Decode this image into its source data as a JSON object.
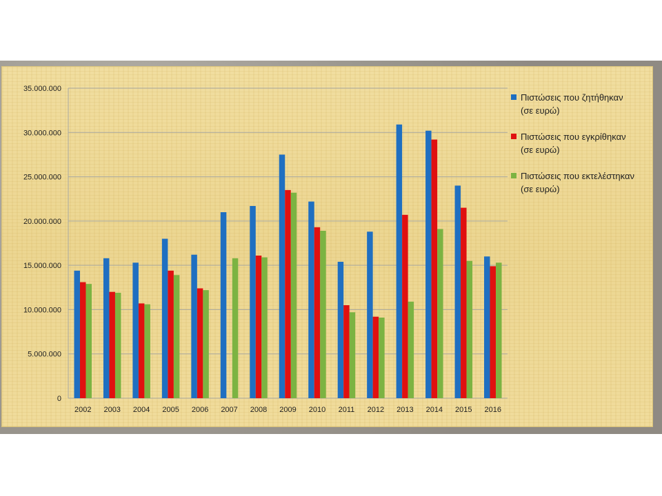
{
  "chart_data": {
    "type": "bar",
    "categories": [
      "2002",
      "2003",
      "2004",
      "2005",
      "2006",
      "2007",
      "2008",
      "2009",
      "2010",
      "2011",
      "2012",
      "2013",
      "2014",
      "2015",
      "2016"
    ],
    "series": [
      {
        "name": "Πιστώσεις που ζητήθηκαν (σε ευρώ)",
        "color": "#1f6fc1",
        "values": [
          14400000,
          15800000,
          15300000,
          18000000,
          16200000,
          21000000,
          21700000,
          27500000,
          22200000,
          15400000,
          18800000,
          30900000,
          30200000,
          24000000,
          16000000
        ]
      },
      {
        "name": "Πιστώσεις που εγκρίθηκαν (σε ευρώ)",
        "color": "#e01010",
        "values": [
          13100000,
          12000000,
          10700000,
          14400000,
          12400000,
          0,
          16100000,
          23500000,
          19300000,
          10500000,
          9200000,
          20700000,
          29200000,
          21500000,
          14900000
        ]
      },
      {
        "name": "Πιστώσεις που εκτελέστηκαν (σε ευρώ)",
        "color": "#7cb342",
        "values": [
          12900000,
          11900000,
          10600000,
          13900000,
          12200000,
          15800000,
          15900000,
          23200000,
          18900000,
          9700000,
          9100000,
          10900000,
          19100000,
          15500000,
          15300000
        ]
      }
    ],
    "ylim": [
      0,
      35000000
    ],
    "yticks": [
      "0",
      "5.000.000",
      "10.000.000",
      "15.000.000",
      "20.000.000",
      "25.000.000",
      "30.000.000",
      "35.000.000"
    ],
    "ytick_values": [
      0,
      5000000,
      10000000,
      15000000,
      20000000,
      25000000,
      30000000,
      35000000
    ],
    "grid": true,
    "legend_position": "right",
    "legend": [
      {
        "line1": "Πιστώσεις που ζητήθηκαν",
        "line2": "(σε ευρώ)"
      },
      {
        "line1": "Πιστώσεις που εγκρίθηκαν",
        "line2": "(σε ευρώ)"
      },
      {
        "line1": "Πιστώσεις που εκτελέστηκαν",
        "line2": "(σε ευρώ)"
      }
    ]
  }
}
